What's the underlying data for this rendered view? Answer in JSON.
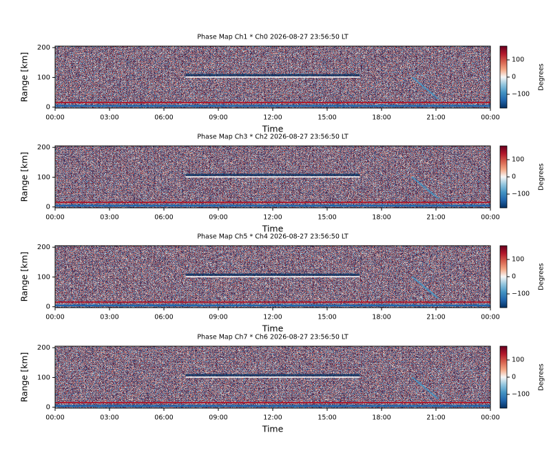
{
  "chart_data": [
    {
      "type": "heatmap",
      "title": "Phase Map Ch1 * Ch0 2026-08-27 23:56:50 LT",
      "xlabel": "Time",
      "ylabel": "Range [km]",
      "xlim": [
        0,
        24
      ],
      "xticks": [
        {
          "value": 0,
          "label": "00:00"
        },
        {
          "value": 3,
          "label": "03:00"
        },
        {
          "value": 6,
          "label": "06:00"
        },
        {
          "value": 9,
          "label": "09:00"
        },
        {
          "value": 12,
          "label": "12:00"
        },
        {
          "value": 15,
          "label": "15:00"
        },
        {
          "value": 18,
          "label": "18:00"
        },
        {
          "value": 21,
          "label": "21:00"
        },
        {
          "value": 24,
          "label": "00:00"
        }
      ],
      "ylim": [
        -3,
        205
      ],
      "yticks": [
        0,
        100,
        200
      ],
      "colorbar": {
        "label": "Degrees",
        "lim": [
          -180,
          180
        ],
        "ticks": [
          {
            "value": -100,
            "label": "−100"
          },
          0,
          100
        ],
        "colors": [
          "#053061",
          "#2166ac",
          "#4393c3",
          "#92c5de",
          "#f7f7f7",
          "#f4a582",
          "#d6604d",
          "#b2182b",
          "#67001f"
        ]
      }
    },
    {
      "type": "heatmap",
      "title": "Phase Map Ch3 * Ch2 2026-08-27 23:56:50 LT",
      "xlabel": "Time",
      "ylabel": "Range [km]",
      "xlim": [
        0,
        24
      ],
      "xticks": [
        {
          "value": 0,
          "label": "00:00"
        },
        {
          "value": 3,
          "label": "03:00"
        },
        {
          "value": 6,
          "label": "06:00"
        },
        {
          "value": 9,
          "label": "09:00"
        },
        {
          "value": 12,
          "label": "12:00"
        },
        {
          "value": 15,
          "label": "15:00"
        },
        {
          "value": 18,
          "label": "18:00"
        },
        {
          "value": 21,
          "label": "21:00"
        },
        {
          "value": 24,
          "label": "00:00"
        }
      ],
      "ylim": [
        -3,
        205
      ],
      "yticks": [
        0,
        100,
        200
      ],
      "colorbar": {
        "label": "Degrees",
        "lim": [
          -180,
          180
        ],
        "ticks": [
          {
            "value": -100,
            "label": "−100"
          },
          0,
          100
        ],
        "colors": [
          "#053061",
          "#2166ac",
          "#4393c3",
          "#92c5de",
          "#f7f7f7",
          "#f4a582",
          "#d6604d",
          "#b2182b",
          "#67001f"
        ]
      }
    },
    {
      "type": "heatmap",
      "title": "Phase Map Ch5 * Ch4 2026-08-27 23:56:50 LT",
      "xlabel": "Time",
      "ylabel": "Range [km]",
      "xlim": [
        0,
        24
      ],
      "xticks": [
        {
          "value": 0,
          "label": "00:00"
        },
        {
          "value": 3,
          "label": "03:00"
        },
        {
          "value": 6,
          "label": "06:00"
        },
        {
          "value": 9,
          "label": "09:00"
        },
        {
          "value": 12,
          "label": "12:00"
        },
        {
          "value": 15,
          "label": "15:00"
        },
        {
          "value": 18,
          "label": "18:00"
        },
        {
          "value": 21,
          "label": "21:00"
        },
        {
          "value": 24,
          "label": "00:00"
        }
      ],
      "ylim": [
        -3,
        205
      ],
      "yticks": [
        0,
        100,
        200
      ],
      "colorbar": {
        "label": "Degrees",
        "lim": [
          -180,
          180
        ],
        "ticks": [
          {
            "value": -100,
            "label": "−100"
          },
          0,
          100
        ],
        "colors": [
          "#053061",
          "#2166ac",
          "#4393c3",
          "#92c5de",
          "#f7f7f7",
          "#f4a582",
          "#d6604d",
          "#b2182b",
          "#67001f"
        ]
      }
    },
    {
      "type": "heatmap",
      "title": "Phase Map Ch7 * Ch6 2026-08-27 23:56:50 LT",
      "xlabel": "Time",
      "ylabel": "Range [km]",
      "xlim": [
        0,
        24
      ],
      "xticks": [
        {
          "value": 0,
          "label": "00:00"
        },
        {
          "value": 3,
          "label": "03:00"
        },
        {
          "value": 6,
          "label": "06:00"
        },
        {
          "value": 9,
          "label": "09:00"
        },
        {
          "value": 12,
          "label": "12:00"
        },
        {
          "value": 15,
          "label": "15:00"
        },
        {
          "value": 18,
          "label": "18:00"
        },
        {
          "value": 21,
          "label": "21:00"
        },
        {
          "value": 24,
          "label": "00:00"
        }
      ],
      "ylim": [
        -3,
        205
      ],
      "yticks": [
        0,
        100,
        200
      ],
      "colorbar": {
        "label": "Degrees",
        "lim": [
          -180,
          180
        ],
        "ticks": [
          {
            "value": -100,
            "label": "−100"
          },
          0,
          100
        ],
        "colors": [
          "#053061",
          "#2166ac",
          "#4393c3",
          "#92c5de",
          "#f7f7f7",
          "#f4a582",
          "#d6604d",
          "#b2182b",
          "#67001f"
        ]
      }
    }
  ]
}
